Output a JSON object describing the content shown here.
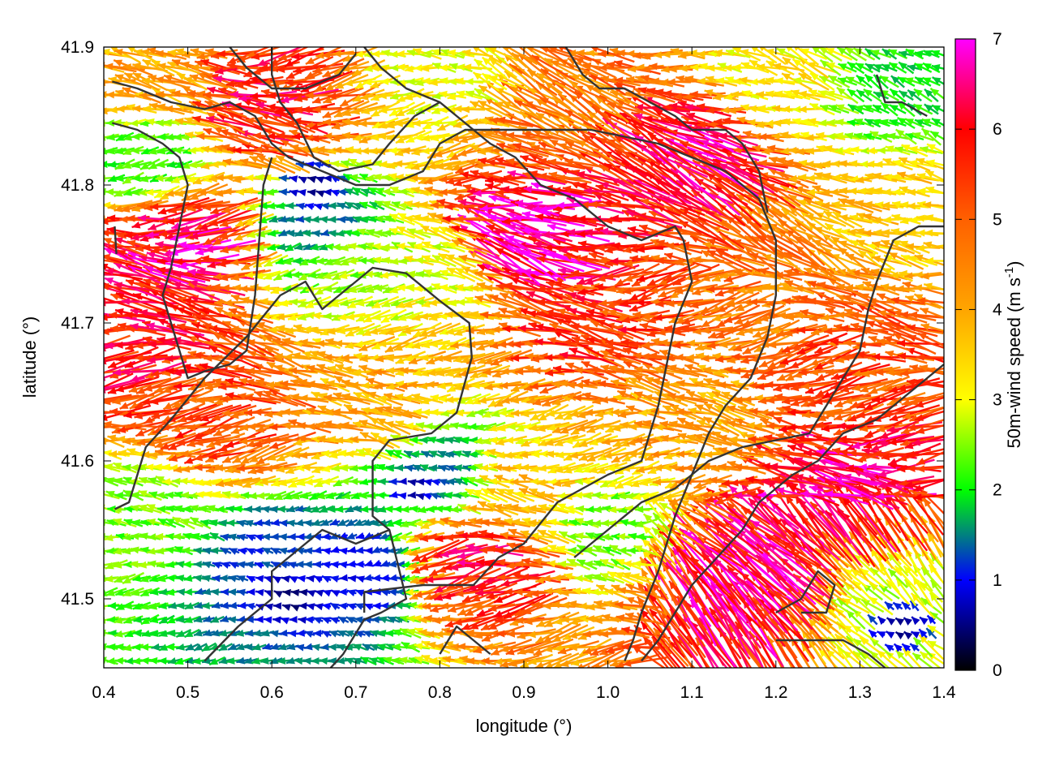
{
  "chart_data": {
    "type": "vector-field",
    "xlabel": "longitude (°)",
    "ylabel": "latitude (°)",
    "xlim": [
      0.4,
      1.4
    ],
    "ylim": [
      41.45,
      41.9
    ],
    "xticks": [
      {
        "v": 0.4,
        "label": "0.4"
      },
      {
        "v": 0.5,
        "label": "0.5"
      },
      {
        "v": 0.6,
        "label": "0.6"
      },
      {
        "v": 0.7,
        "label": "0.7"
      },
      {
        "v": 0.8,
        "label": "0.8"
      },
      {
        "v": 0.9,
        "label": "0.9"
      },
      {
        "v": 1.0,
        "label": "1.0"
      },
      {
        "v": 1.1,
        "label": "1.1"
      },
      {
        "v": 1.2,
        "label": "1.2"
      },
      {
        "v": 1.3,
        "label": "1.3"
      },
      {
        "v": 1.4,
        "label": "1.4"
      }
    ],
    "yticks": [
      {
        "v": 41.5,
        "label": "41.5"
      },
      {
        "v": 41.6,
        "label": "41.6"
      },
      {
        "v": 41.7,
        "label": "41.7"
      },
      {
        "v": 41.8,
        "label": "41.8"
      },
      {
        "v": 41.9,
        "label": "41.9"
      }
    ],
    "colorbar": {
      "label": "50m-wind speed (m s",
      "label_sup": "-1",
      "label_end": ")",
      "range": [
        0,
        7
      ],
      "ticks": [
        {
          "v": 0,
          "label": "0"
        },
        {
          "v": 1,
          "label": "1"
        },
        {
          "v": 2,
          "label": "2"
        },
        {
          "v": 3,
          "label": "3"
        },
        {
          "v": 4,
          "label": "4"
        },
        {
          "v": 5,
          "label": "5"
        },
        {
          "v": 6,
          "label": "6"
        },
        {
          "v": 7,
          "label": "7"
        }
      ],
      "palette": [
        {
          "v": 0.0,
          "color": "#000000"
        },
        {
          "v": 1.0,
          "color": "#0000ff"
        },
        {
          "v": 1.5,
          "color": "#008080"
        },
        {
          "v": 2.0,
          "color": "#00ff00"
        },
        {
          "v": 3.0,
          "color": "#ffff00"
        },
        {
          "v": 4.0,
          "color": "#ffa500"
        },
        {
          "v": 5.0,
          "color": "#ff6000"
        },
        {
          "v": 6.0,
          "color": "#ff0000"
        },
        {
          "v": 7.0,
          "color": "#ff00ff"
        }
      ]
    },
    "vector_grid": {
      "dlon": 0.01,
      "dlat": 0.01
    },
    "speed_regions": [
      {
        "lon": 0.45,
        "lat": 41.68,
        "speed": 5.8
      },
      {
        "lon": 0.5,
        "lat": 41.76,
        "speed": 6.2
      },
      {
        "lon": 0.45,
        "lat": 41.82,
        "speed": 2.2
      },
      {
        "lon": 0.45,
        "lat": 41.88,
        "speed": 4.0
      },
      {
        "lon": 0.6,
        "lat": 41.86,
        "speed": 5.8
      },
      {
        "lon": 0.66,
        "lat": 41.77,
        "speed": 1.4
      },
      {
        "lon": 0.7,
        "lat": 41.75,
        "speed": 2.6
      },
      {
        "lon": 0.8,
        "lat": 41.74,
        "speed": 3.0
      },
      {
        "lon": 0.72,
        "lat": 41.64,
        "speed": 4.0
      },
      {
        "lon": 0.55,
        "lat": 41.63,
        "speed": 5.2
      },
      {
        "lon": 0.45,
        "lat": 41.56,
        "speed": 2.4
      },
      {
        "lon": 0.6,
        "lat": 41.53,
        "speed": 1.2
      },
      {
        "lon": 0.7,
        "lat": 41.52,
        "speed": 1.0
      },
      {
        "lon": 0.8,
        "lat": 41.59,
        "speed": 1.5
      },
      {
        "lon": 0.85,
        "lat": 41.53,
        "speed": 5.8
      },
      {
        "lon": 0.9,
        "lat": 41.58,
        "speed": 3.6
      },
      {
        "lon": 0.9,
        "lat": 41.76,
        "speed": 6.8
      },
      {
        "lon": 1.1,
        "lat": 41.83,
        "speed": 6.2
      },
      {
        "lon": 1.0,
        "lat": 41.7,
        "speed": 5.5
      },
      {
        "lon": 1.2,
        "lat": 41.72,
        "speed": 4.6
      },
      {
        "lon": 1.1,
        "lat": 41.63,
        "speed": 4.0
      },
      {
        "lon": 1.0,
        "lat": 41.55,
        "speed": 2.4
      },
      {
        "lon": 1.15,
        "lat": 41.52,
        "speed": 6.5
      },
      {
        "lon": 1.28,
        "lat": 41.58,
        "speed": 6.2
      },
      {
        "lon": 1.35,
        "lat": 41.5,
        "speed": 2.8
      },
      {
        "lon": 1.3,
        "lat": 41.67,
        "speed": 5.2
      },
      {
        "lon": 1.35,
        "lat": 41.78,
        "speed": 3.6
      },
      {
        "lon": 1.2,
        "lat": 41.88,
        "speed": 3.2
      },
      {
        "lon": 1.35,
        "lat": 41.87,
        "speed": 2.0
      },
      {
        "lon": 0.8,
        "lat": 41.88,
        "speed": 3.0
      },
      {
        "lon": 0.95,
        "lat": 41.86,
        "speed": 4.6
      }
    ],
    "calm_areas": [
      {
        "lon": 0.65,
        "lat": 41.8,
        "r": 0.04
      },
      {
        "lon": 0.62,
        "lat": 41.5,
        "r": 0.06
      },
      {
        "lon": 1.35,
        "lat": 41.48,
        "r": 0.04
      },
      {
        "lon": 0.77,
        "lat": 41.58,
        "r": 0.03
      }
    ],
    "contours": [
      [
        [
          0.413,
          41.565
        ],
        [
          0.43,
          41.57
        ],
        [
          0.45,
          41.61
        ],
        [
          0.48,
          41.63
        ],
        [
          0.52,
          41.66
        ],
        [
          0.57,
          41.69
        ],
        [
          0.61,
          41.72
        ],
        [
          0.64,
          41.73
        ],
        [
          0.66,
          41.71
        ],
        [
          0.72,
          41.74
        ],
        [
          0.76,
          41.736
        ],
        [
          0.8,
          41.716
        ],
        [
          0.835,
          41.7
        ],
        [
          0.838,
          41.675
        ],
        [
          0.82,
          41.635
        ],
        [
          0.79,
          41.62
        ],
        [
          0.74,
          41.615
        ],
        [
          0.72,
          41.6
        ],
        [
          0.72,
          41.56
        ],
        [
          0.74,
          41.55
        ],
        [
          0.76,
          41.5
        ],
        [
          0.73,
          41.49
        ],
        [
          0.71,
          41.485
        ],
        [
          0.685,
          41.46
        ],
        [
          0.67,
          41.45
        ]
      ],
      [
        [
          0.52,
          41.455
        ],
        [
          0.56,
          41.48
        ],
        [
          0.6,
          41.5
        ],
        [
          0.6,
          41.52
        ],
        [
          0.64,
          41.54
        ],
        [
          0.66,
          41.55
        ],
        [
          0.7,
          41.54
        ],
        [
          0.74,
          41.55
        ]
      ],
      [
        [
          0.71,
          41.49
        ],
        [
          0.71,
          41.505
        ],
        [
          0.78,
          41.51
        ],
        [
          0.84,
          41.51
        ],
        [
          0.87,
          41.53
        ],
        [
          0.9,
          41.54
        ],
        [
          0.94,
          41.57
        ],
        [
          0.97,
          41.58
        ],
        [
          1.0,
          41.59
        ],
        [
          1.04,
          41.6
        ],
        [
          1.06,
          41.64
        ],
        [
          1.08,
          41.7
        ],
        [
          1.1,
          41.73
        ],
        [
          1.09,
          41.76
        ],
        [
          1.08,
          41.77
        ],
        [
          1.04,
          41.76
        ],
        [
          1.0,
          41.77
        ],
        [
          0.96,
          41.79
        ],
        [
          0.92,
          41.8
        ],
        [
          0.89,
          41.82
        ],
        [
          0.86,
          41.83
        ],
        [
          0.83,
          41.845
        ],
        [
          0.8,
          41.86
        ],
        [
          0.76,
          41.87
        ],
        [
          0.73,
          41.885
        ],
        [
          0.71,
          41.9
        ]
      ],
      [
        [
          0.41,
          41.875
        ],
        [
          0.44,
          41.87
        ],
        [
          0.48,
          41.86
        ],
        [
          0.52,
          41.855
        ],
        [
          0.55,
          41.86
        ],
        [
          0.58,
          41.85
        ],
        [
          0.6,
          41.83
        ],
        [
          0.62,
          41.82
        ],
        [
          0.66,
          41.81
        ],
        [
          0.7,
          41.8
        ],
        [
          0.74,
          41.8
        ],
        [
          0.78,
          41.81
        ],
        [
          0.8,
          41.83
        ],
        [
          0.83,
          41.84
        ],
        [
          0.86,
          41.84
        ],
        [
          0.9,
          41.84
        ],
        [
          0.94,
          41.84
        ],
        [
          0.98,
          41.84
        ],
        [
          1.02,
          41.835
        ],
        [
          1.06,
          41.83
        ],
        [
          1.1,
          41.82
        ],
        [
          1.14,
          41.81
        ],
        [
          1.18,
          41.79
        ],
        [
          1.2,
          41.76
        ],
        [
          1.2,
          41.72
        ],
        [
          1.19,
          41.69
        ],
        [
          1.17,
          41.66
        ],
        [
          1.14,
          41.64
        ],
        [
          1.12,
          41.62
        ],
        [
          1.1,
          41.59
        ],
        [
          1.08,
          41.56
        ],
        [
          1.06,
          41.52
        ],
        [
          1.04,
          41.49
        ],
        [
          1.03,
          41.47
        ],
        [
          1.02,
          41.455
        ]
      ],
      [
        [
          0.55,
          41.9
        ],
        [
          0.57,
          41.885
        ],
        [
          0.6,
          41.87
        ],
        [
          0.64,
          41.87
        ],
        [
          0.68,
          41.88
        ],
        [
          0.7,
          41.895
        ]
      ],
      [
        [
          0.6,
          41.9
        ],
        [
          0.6,
          41.88
        ],
        [
          0.61,
          41.86
        ],
        [
          0.63,
          41.845
        ],
        [
          0.65,
          41.82
        ],
        [
          0.68,
          41.81
        ],
        [
          0.72,
          41.815
        ],
        [
          0.74,
          41.83
        ],
        [
          0.77,
          41.85
        ],
        [
          0.8,
          41.86
        ]
      ],
      [
        [
          0.41,
          41.845
        ],
        [
          0.44,
          41.84
        ],
        [
          0.47,
          41.83
        ],
        [
          0.49,
          41.82
        ],
        [
          0.5,
          41.8
        ],
        [
          0.49,
          41.77
        ],
        [
          0.48,
          41.74
        ],
        [
          0.47,
          41.72
        ],
        [
          0.48,
          41.7
        ],
        [
          0.49,
          41.68
        ],
        [
          0.5,
          41.66
        ],
        [
          0.52,
          41.665
        ],
        [
          0.55,
          41.67
        ],
        [
          0.57,
          41.68
        ],
        [
          0.58,
          41.72
        ],
        [
          0.585,
          41.76
        ],
        [
          0.59,
          41.8
        ],
        [
          0.6,
          41.82
        ]
      ],
      [
        [
          0.413,
          41.77
        ],
        [
          0.415,
          41.75
        ]
      ],
      [
        [
          0.8,
          41.46
        ],
        [
          0.81,
          41.47
        ],
        [
          0.82,
          41.48
        ],
        [
          0.84,
          41.47
        ],
        [
          0.86,
          41.46
        ]
      ],
      [
        [
          0.96,
          41.53
        ],
        [
          1.0,
          41.55
        ],
        [
          1.04,
          41.57
        ],
        [
          1.08,
          41.58
        ],
        [
          1.12,
          41.6
        ],
        [
          1.16,
          41.61
        ],
        [
          1.2,
          41.615
        ],
        [
          1.24,
          41.62
        ],
        [
          1.26,
          41.64
        ],
        [
          1.28,
          41.66
        ],
        [
          1.3,
          41.68
        ],
        [
          1.31,
          41.71
        ],
        [
          1.32,
          41.73
        ],
        [
          1.34,
          41.76
        ],
        [
          1.37,
          41.77
        ],
        [
          1.4,
          41.77
        ]
      ],
      [
        [
          1.04,
          41.455
        ],
        [
          1.06,
          41.47
        ],
        [
          1.08,
          41.49
        ],
        [
          1.1,
          41.51
        ],
        [
          1.13,
          41.53
        ],
        [
          1.16,
          41.55
        ],
        [
          1.18,
          41.57
        ],
        [
          1.22,
          41.59
        ],
        [
          1.25,
          41.6
        ],
        [
          1.28,
          41.62
        ],
        [
          1.32,
          41.63
        ],
        [
          1.35,
          41.645
        ],
        [
          1.38,
          41.66
        ],
        [
          1.4,
          41.67
        ]
      ],
      [
        [
          1.2,
          41.47
        ],
        [
          1.24,
          41.47
        ],
        [
          1.28,
          41.47
        ],
        [
          1.31,
          41.46
        ],
        [
          1.33,
          41.45
        ]
      ],
      [
        [
          1.2,
          41.49
        ],
        [
          1.23,
          41.5
        ],
        [
          1.25,
          41.52
        ],
        [
          1.27,
          41.51
        ],
        [
          1.26,
          41.49
        ],
        [
          1.23,
          41.49
        ]
      ],
      [
        [
          1.32,
          41.88
        ],
        [
          1.33,
          41.86
        ],
        [
          1.35,
          41.86
        ],
        [
          1.38,
          41.85
        ]
      ],
      [
        [
          0.95,
          41.9
        ],
        [
          0.97,
          41.88
        ],
        [
          0.99,
          41.87
        ],
        [
          1.02,
          41.87
        ],
        [
          1.05,
          41.86
        ],
        [
          1.08,
          41.85
        ],
        [
          1.1,
          41.84
        ],
        [
          1.14,
          41.84
        ],
        [
          1.16,
          41.83
        ],
        [
          1.18,
          41.81
        ],
        [
          1.19,
          41.78
        ]
      ]
    ]
  }
}
